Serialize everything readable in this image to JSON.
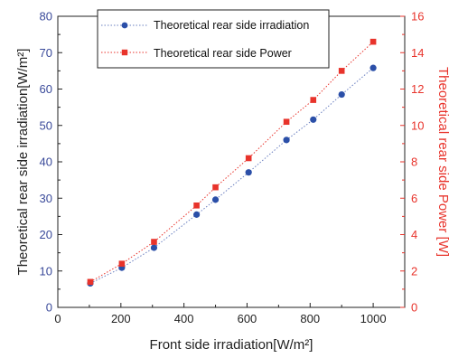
{
  "chart_data": {
    "type": "line",
    "xlabel": "Front side irradiation[W/m²]",
    "ylabel_left": "Theoretical rear side irradiation[W/m²]",
    "ylabel_right": "Theoretical rear side Power [W]",
    "xlim": [
      0,
      1100
    ],
    "ylim_left": [
      0,
      80
    ],
    "ylim_right": [
      0,
      16
    ],
    "x_ticks": [
      0,
      200,
      400,
      600,
      800,
      1000
    ],
    "y_left_ticks": [
      0,
      10,
      20,
      30,
      40,
      50,
      60,
      70,
      80
    ],
    "y_right_ticks": [
      0,
      2,
      4,
      6,
      8,
      10,
      12,
      14,
      16
    ],
    "legend_position": "top-center",
    "grid": false,
    "series": [
      {
        "name": "Theoretical rear side irradiation",
        "axis": "left",
        "color": "#2b4fa8",
        "marker": "circle",
        "line": "dotted",
        "points": [
          [
            103,
            6.6
          ],
          [
            203,
            10.9
          ],
          [
            305,
            16.4
          ],
          [
            440,
            25.5
          ],
          [
            500,
            29.6
          ],
          [
            605,
            37.1
          ],
          [
            725,
            46.0
          ],
          [
            810,
            51.6
          ],
          [
            900,
            58.5
          ],
          [
            1000,
            65.8
          ]
        ]
      },
      {
        "name": "Theoretical rear side Power",
        "axis": "right",
        "color": "#e8332b",
        "marker": "square",
        "line": "dotted",
        "points": [
          [
            103,
            1.4
          ],
          [
            203,
            2.4
          ],
          [
            305,
            3.6
          ],
          [
            440,
            5.6
          ],
          [
            500,
            6.6
          ],
          [
            605,
            8.2
          ],
          [
            725,
            10.2
          ],
          [
            810,
            11.4
          ],
          [
            900,
            13.0
          ],
          [
            1000,
            14.6
          ]
        ]
      }
    ]
  }
}
